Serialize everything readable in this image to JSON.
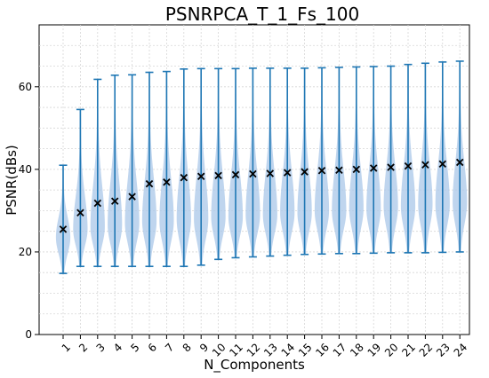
{
  "chart_data": {
    "type": "violin",
    "title": "PSNRPCA_T_1_Fs_100",
    "xlabel": "N_Components",
    "ylabel": "PSNR(dBs)",
    "categories": [
      "1",
      "2",
      "3",
      "4",
      "5",
      "6",
      "7",
      "8",
      "9",
      "10",
      "11",
      "12",
      "13",
      "14",
      "15",
      "16",
      "17",
      "18",
      "19",
      "20",
      "21",
      "22",
      "23",
      "24"
    ],
    "ylim": [
      0,
      75
    ],
    "yticks": [
      0,
      20,
      40,
      60
    ],
    "grid": true,
    "mean_marker": "x",
    "colors": {
      "whisker": "#1f77b4",
      "body": "#a9c7e8",
      "marker": "#000000"
    },
    "series": [
      {
        "stat": "max",
        "values": [
          41.0,
          54.5,
          61.8,
          62.8,
          62.9,
          63.5,
          63.7,
          64.3,
          64.4,
          64.4,
          64.4,
          64.5,
          64.5,
          64.5,
          64.5,
          64.6,
          64.7,
          64.8,
          64.9,
          65.0,
          65.4,
          65.7,
          66.0,
          66.2
        ]
      },
      {
        "stat": "min",
        "values": [
          14.8,
          16.5,
          16.5,
          16.5,
          16.5,
          16.5,
          16.5,
          16.5,
          16.8,
          18.2,
          18.6,
          18.8,
          19.0,
          19.2,
          19.4,
          19.5,
          19.6,
          19.6,
          19.7,
          19.8,
          19.8,
          19.8,
          19.9,
          20.0
        ]
      },
      {
        "stat": "mean",
        "values": [
          25.5,
          29.5,
          31.8,
          32.3,
          33.4,
          36.5,
          36.9,
          38.0,
          38.3,
          38.5,
          38.7,
          38.9,
          39.0,
          39.2,
          39.4,
          39.7,
          39.8,
          40.0,
          40.3,
          40.5,
          40.8,
          41.1,
          41.3,
          41.7
        ]
      },
      {
        "stat": "mode",
        "values": [
          23.5,
          25.5,
          26.0,
          26.5,
          27.0,
          27.5,
          27.5,
          28.0,
          28.0,
          28.5,
          28.5,
          29.0,
          29.0,
          29.5,
          29.5,
          30.0,
          30.0,
          30.5,
          30.5,
          31.0,
          31.0,
          31.5,
          31.5,
          32.0
        ]
      }
    ]
  }
}
